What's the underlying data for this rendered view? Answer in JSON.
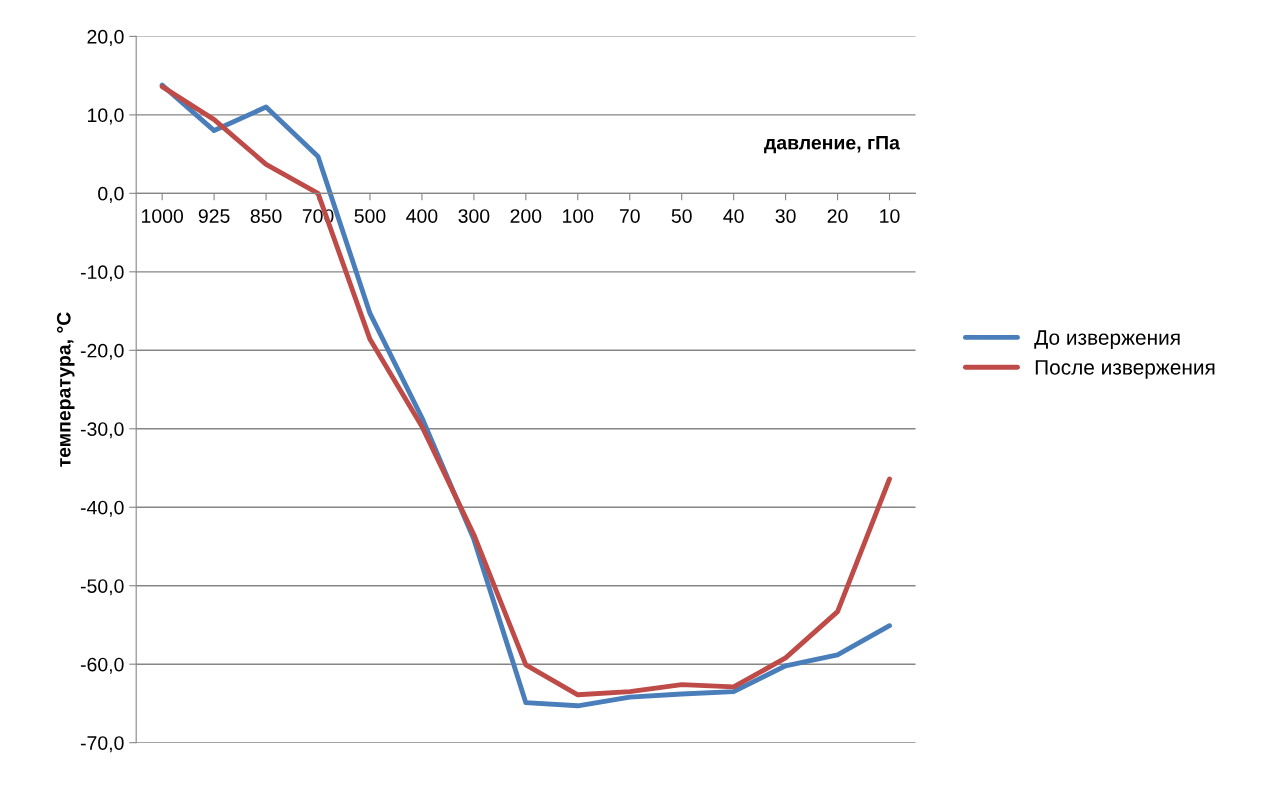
{
  "chart_data": {
    "type": "line",
    "xlabel": "давление, гПа",
    "ylabel": "температура, °С",
    "categories": [
      "1000",
      "925",
      "850",
      "700",
      "500",
      "400",
      "300",
      "200",
      "100",
      "70",
      "50",
      "40",
      "30",
      "20",
      "10"
    ],
    "series": [
      {
        "name": "До извержения",
        "color": "#4a7ebb",
        "values": [
          13.8,
          8.0,
          11.0,
          4.7,
          -15.3,
          -28.6,
          -44.1,
          -64.9,
          -65.3,
          -64.2,
          -63.8,
          -63.5,
          -60.2,
          -58.8,
          -55.1
        ]
      },
      {
        "name": "После извержения",
        "color": "#be4b48",
        "values": [
          13.6,
          9.4,
          3.7,
          0.0,
          -18.6,
          -29.7,
          -43.5,
          -60.1,
          -63.9,
          -63.5,
          -62.6,
          -62.9,
          -59.2,
          -53.3,
          -36.4
        ]
      }
    ],
    "ylim": [
      -70,
      20
    ],
    "yticks": [
      {
        "value": -70,
        "label": "-70,0"
      },
      {
        "value": -60,
        "label": "-60,0"
      },
      {
        "value": -50,
        "label": "-50,0"
      },
      {
        "value": -40,
        "label": "-40,0"
      },
      {
        "value": -30,
        "label": "-30,0"
      },
      {
        "value": -20,
        "label": "-20,0"
      },
      {
        "value": -10,
        "label": "-10,0"
      },
      {
        "value": 0,
        "label": "0,0"
      },
      {
        "value": 10,
        "label": "10,0"
      },
      {
        "value": 20,
        "label": "20,0"
      }
    ],
    "grid": "y",
    "legend": "right",
    "marker": "none",
    "line_style": "solid"
  }
}
